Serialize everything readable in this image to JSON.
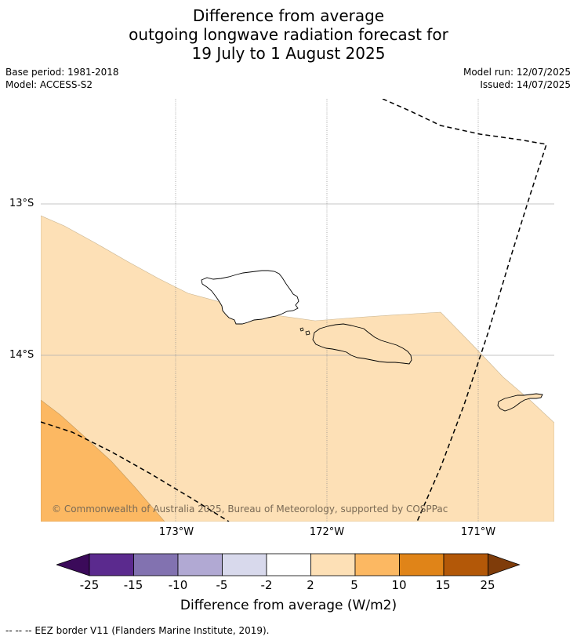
{
  "title": {
    "line1": "Difference from average",
    "line2": "outgoing longwave radiation forecast for",
    "line3": "19 July to 1 August 2025"
  },
  "meta": {
    "base_period": "Base period: 1981-2018",
    "model": "Model: ACCESS-S2",
    "model_run": "Model run: 12/07/2025",
    "issued": "Issued: 14/07/2025"
  },
  "map": {
    "lat_labels": [
      "13°S",
      "14°S"
    ],
    "lon_labels": [
      "173°W",
      "172°W",
      "171°W"
    ],
    "copyright": "© Commonwealth of Australia 2025, Bureau of Meteorology, supported by COSPPac",
    "colors": {
      "anomaly_2_5": "#fde0b6",
      "anomaly_5_10": "#fcb862",
      "land_outline": "#000000",
      "gridline": "#aaaaaa"
    }
  },
  "colorbar": {
    "title": "Difference from average (W/m2)",
    "ticks": [
      "-25",
      "-15",
      "-10",
      "-5",
      "-2",
      "2",
      "5",
      "10",
      "15",
      "25"
    ],
    "colors": [
      "#3b0a5a",
      "#5b2a8e",
      "#8272b0",
      "#b1a9d3",
      "#d8d9ec",
      "#ffffff",
      "#fde0b6",
      "#fcb862",
      "#e08418",
      "#b35808",
      "#7f3c0a"
    ]
  },
  "footnote": "--  --  -- EEZ border V11 (Flanders Marine Institute, 2019)."
}
